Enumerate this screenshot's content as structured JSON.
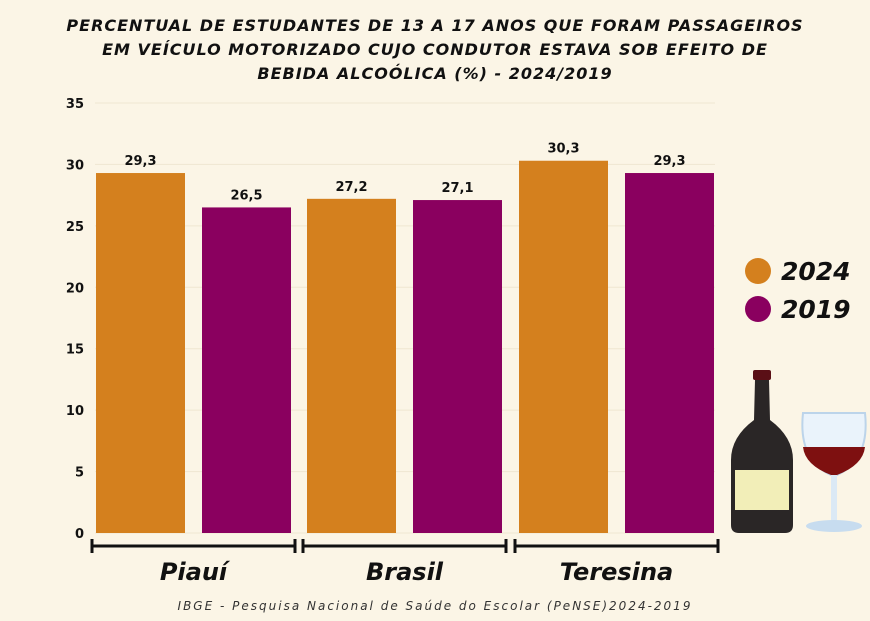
{
  "title_lines": [
    "PERCENTUAL DE ESTUDANTES DE 13 A 17 ANOS QUE FORAM PASSAGEIROS",
    "EM VEÍCULO MOTORIZADO CUJO CONDUTOR ESTAVA SOB EFEITO DE",
    "BEBIDA ALCOÓLICA (%) - 2024/2019"
  ],
  "footer": "IBGE - Pesquisa Nacional de Saúde do Escolar (PeNSE)2024-2019",
  "colors": {
    "2024": "#d4801e",
    "2019": "#8a005f",
    "background": "#fbf5e6"
  },
  "chart_data": {
    "type": "bar",
    "title": "PERCENTUAL DE ESTUDANTES DE 13 A 17 ANOS QUE FORAM PASSAGEIROS EM VEÍCULO MOTORIZADO CUJO CONDUTOR ESTAVA SOB EFEITO DE BEBIDA ALCOÓLICA (%) - 2024/2019",
    "categories": [
      "Piauí",
      "Brasil",
      "Teresina"
    ],
    "series": [
      {
        "name": "2024",
        "values": [
          29.3,
          27.2,
          30.3
        ],
        "labels": [
          "29,3",
          "27,2",
          "30,3"
        ]
      },
      {
        "name": "2019",
        "values": [
          26.5,
          27.1,
          29.3
        ],
        "labels": [
          "26,5",
          "27,1",
          "29,3"
        ]
      }
    ],
    "ylim": [
      0,
      35
    ],
    "yticks": [
      0,
      5,
      10,
      15,
      20,
      25,
      30,
      35
    ],
    "grid": true,
    "legend": "right"
  },
  "decor": {
    "icons": [
      "wine-bottle-icon",
      "wine-glass-icon"
    ]
  }
}
